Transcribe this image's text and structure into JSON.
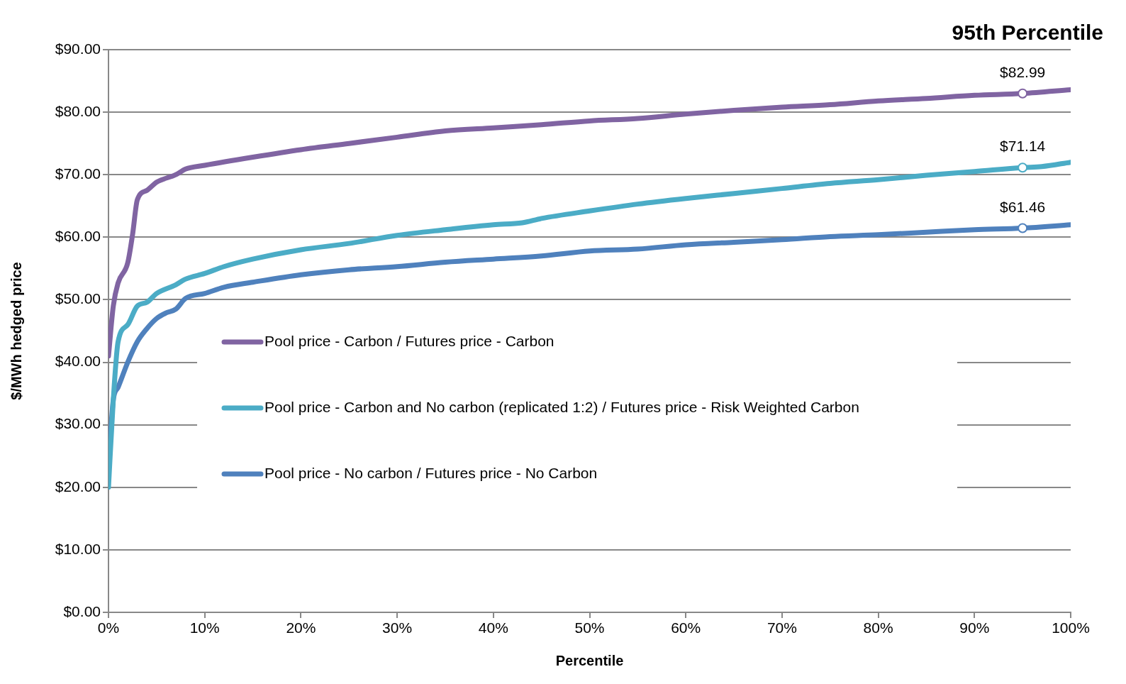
{
  "chart_data": {
    "type": "line",
    "title": "95th Percentile",
    "xlabel": "Percentile",
    "ylabel": "$/MWh hedged price",
    "xlim": [
      0,
      100
    ],
    "xticks": [
      {
        "value": 0,
        "label": "0%"
      },
      {
        "value": 10,
        "label": "10%"
      },
      {
        "value": 20,
        "label": "20%"
      },
      {
        "value": 30,
        "label": "30%"
      },
      {
        "value": 40,
        "label": "40%"
      },
      {
        "value": 50,
        "label": "50%"
      },
      {
        "value": 60,
        "label": "60%"
      },
      {
        "value": 70,
        "label": "70%"
      },
      {
        "value": 80,
        "label": "80%"
      },
      {
        "value": 90,
        "label": "90%"
      },
      {
        "value": 100,
        "label": "100%"
      }
    ],
    "ylim": [
      0,
      90
    ],
    "yticks": [
      {
        "value": 0,
        "label": "$0.00"
      },
      {
        "value": 10,
        "label": "$10.00"
      },
      {
        "value": 20,
        "label": "$20.00"
      },
      {
        "value": 30,
        "label": "$30.00"
      },
      {
        "value": 40,
        "label": "$40.00"
      },
      {
        "value": 50,
        "label": "$50.00"
      },
      {
        "value": 60,
        "label": "$60.00"
      },
      {
        "value": 70,
        "label": "$70.00"
      },
      {
        "value": 80,
        "label": "$80.00"
      },
      {
        "value": 90,
        "label": "$90.00"
      }
    ],
    "grid": "y",
    "legend": "left",
    "marker": "none",
    "line_style": "solid",
    "series": [
      {
        "name": "Pool price - Carbon / Futures price - Carbon",
        "color": "#8064a2",
        "x": [
          0,
          0.5,
          1,
          2,
          2.5,
          3,
          4,
          5,
          7,
          8,
          10,
          15,
          20,
          25,
          30,
          35,
          40,
          45,
          50,
          55,
          60,
          65,
          70,
          75,
          80,
          85,
          90,
          95,
          100
        ],
        "values": [
          41,
          49,
          52.7,
          55.9,
          60.4,
          66,
          67.5,
          68.8,
          70,
          70.9,
          71.5,
          72.8,
          74,
          75,
          76,
          77,
          77.5,
          78,
          78.6,
          79,
          79.7,
          80.3,
          80.8,
          81.2,
          81.8,
          82.2,
          82.7,
          82.99,
          83.6
        ],
        "value_labels": [
          null,
          null,
          null,
          null,
          null,
          null,
          null,
          null,
          null,
          null,
          null,
          null,
          null,
          null,
          null,
          null,
          null,
          null,
          null,
          null,
          null,
          null,
          null,
          null,
          null,
          null,
          null,
          "$82.99",
          null
        ]
      },
      {
        "name": "Pool price - Carbon and No carbon (replicated 1:2) / Futures price - Risk Weighted Carbon",
        "color": "#4bacc6",
        "x": [
          0,
          0.5,
          1,
          2,
          3,
          4,
          5,
          7,
          8,
          10,
          12,
          15,
          20,
          25,
          30,
          35,
          40,
          43,
          45,
          50,
          55,
          60,
          65,
          70,
          75,
          80,
          85,
          90,
          95,
          97,
          100
        ],
        "values": [
          20,
          34,
          43.3,
          46,
          49,
          49.6,
          51,
          52.4,
          53.3,
          54.2,
          55.3,
          56.5,
          58,
          59,
          60.3,
          61.2,
          62,
          62.3,
          63,
          64.2,
          65.3,
          66.2,
          67,
          67.8,
          68.6,
          69.2,
          69.9,
          70.5,
          71.14,
          71.3,
          72
        ],
        "value_labels": [
          null,
          null,
          null,
          null,
          null,
          null,
          null,
          null,
          null,
          null,
          null,
          null,
          null,
          null,
          null,
          null,
          null,
          null,
          null,
          null,
          null,
          null,
          null,
          null,
          null,
          null,
          null,
          null,
          "$71.14",
          null,
          null
        ]
      },
      {
        "name": "Pool price - No carbon / Futures price - No Carbon",
        "color": "#4f81bd",
        "x": [
          0,
          0.5,
          1,
          2,
          3,
          4,
          5,
          6,
          7,
          8,
          10,
          12,
          15,
          20,
          25,
          30,
          35,
          40,
          45,
          50,
          55,
          60,
          65,
          70,
          75,
          80,
          85,
          90,
          95,
          100
        ],
        "values": [
          23.4,
          34,
          36,
          40,
          43.3,
          45.4,
          47,
          47.9,
          48.5,
          50.2,
          51,
          52,
          52.8,
          54,
          54.8,
          55.3,
          56,
          56.5,
          57,
          57.8,
          58.1,
          58.8,
          59.2,
          59.6,
          60.1,
          60.4,
          60.8,
          61.2,
          61.46,
          62
        ],
        "value_labels": [
          null,
          null,
          null,
          null,
          null,
          null,
          null,
          null,
          null,
          null,
          null,
          null,
          null,
          null,
          null,
          null,
          null,
          null,
          null,
          null,
          null,
          null,
          null,
          null,
          null,
          null,
          null,
          null,
          "$61.46",
          null
        ]
      }
    ]
  }
}
